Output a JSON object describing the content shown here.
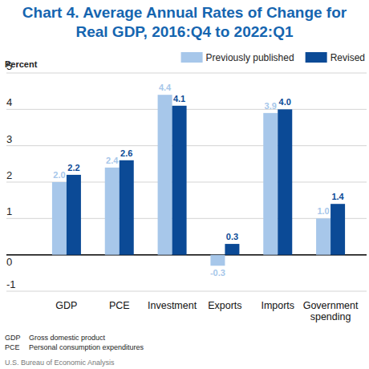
{
  "chart_data": {
    "type": "bar",
    "title": "Chart 4. Average Annual Rates of Change for Real GDP, 2016:Q4 to 2022:Q1",
    "y_label": "Percent",
    "categories": [
      "GDP",
      "PCE",
      "Investment",
      "Exports",
      "Imports",
      "Government spending"
    ],
    "series": [
      {
        "name": "Previously published",
        "color": "#a7c7ea",
        "values": [
          2.0,
          2.4,
          4.4,
          -0.3,
          3.9,
          1.0
        ],
        "value_labels": [
          "2.0",
          "2.4",
          "4.4",
          "-0.3",
          "3.9",
          "1.0"
        ]
      },
      {
        "name": "Revised",
        "color": "#0b4a96",
        "values": [
          2.2,
          2.6,
          4.1,
          0.3,
          4.0,
          1.4
        ],
        "value_labels": [
          "2.2",
          "2.6",
          "4.1",
          "0.3",
          "4.0",
          "1.4"
        ]
      }
    ],
    "ylim": [
      -1,
      5
    ],
    "yticks": [
      -1,
      0,
      1,
      2,
      3,
      4,
      5
    ],
    "grid": true,
    "legend": "top-right",
    "data_labels": true,
    "notes": [
      {
        "abbr": "GDP",
        "text": "Gross domestic product"
      },
      {
        "abbr": "PCE",
        "text": "Personal consumption expenditures"
      }
    ],
    "source": "U.S. Bureau of Economic Analysis"
  }
}
